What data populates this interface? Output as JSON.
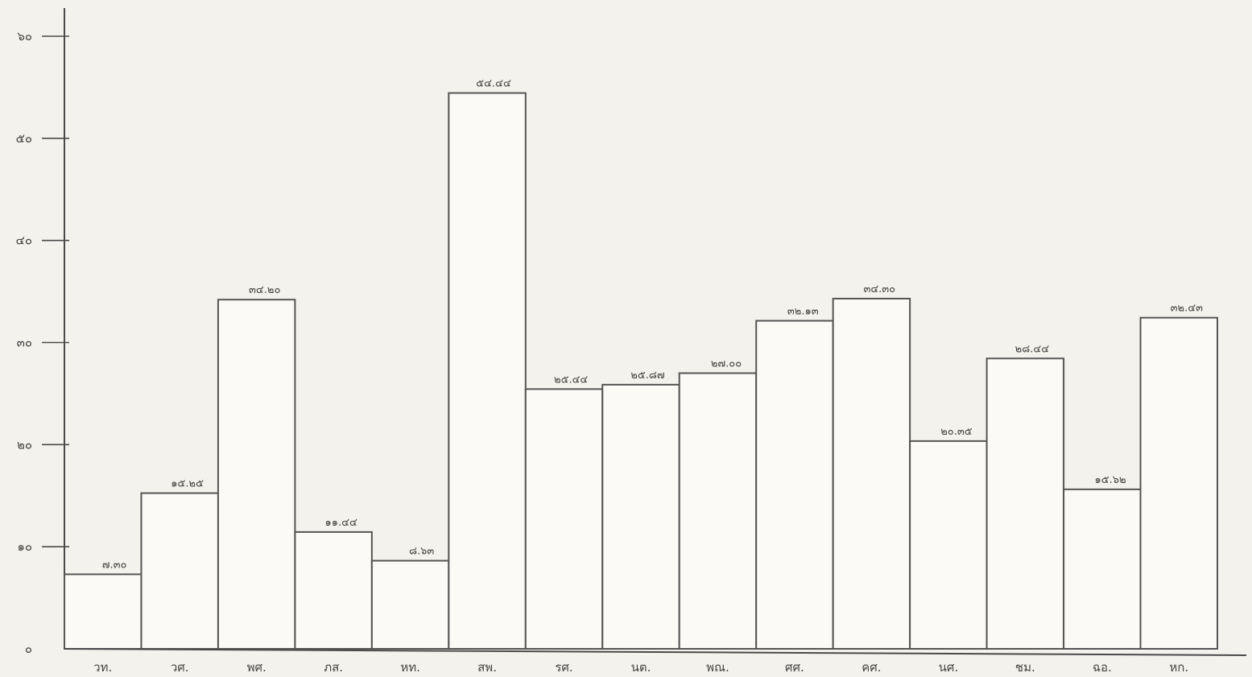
{
  "colors": {
    "background": "#f4f2ec",
    "bar_fill": "#fbfaf6",
    "bar_stroke": "#555555",
    "text": "#444444"
  },
  "chart_data": {
    "type": "bar",
    "title": "",
    "xlabel": "",
    "ylabel": "",
    "ylim": [
      0,
      60
    ],
    "y_ticks": [
      0,
      10,
      20,
      30,
      40,
      50,
      60
    ],
    "y_tick_labels": [
      "๐",
      "๑๐",
      "๒๐",
      "๓๐",
      "๔๐",
      "๕๐",
      "๖๐"
    ],
    "grid": false,
    "legend": "none",
    "categories": [
      "วท.",
      "วศ.",
      "พศ.",
      "ภส.",
      "หท.",
      "สพ.",
      "รศ.",
      "นต.",
      "พณ.",
      "ศศ.",
      "คศ.",
      "นศ.",
      "ชม.",
      "ฉอ.",
      "หก."
    ],
    "values": [
      7.3,
      15.25,
      34.2,
      11.44,
      8.63,
      54.44,
      25.44,
      25.87,
      27.0,
      32.13,
      34.3,
      20.35,
      28.44,
      15.62,
      32.43
    ],
    "data_labels": [
      "๗.๓๐",
      "๑๕.๒๕",
      "๓๔.๒๐",
      "๑๑.๔๔",
      "๘.๖๓",
      "๕๔.๔๔",
      "๒๕.๔๔",
      "๒๕.๘๗",
      "๒๗.๐๐",
      "๓๒.๑๓",
      "๓๔.๓๐",
      "๒๐.๓๕",
      "๒๘.๔๔",
      "๑๕.๖๒",
      "๓๒.๔๓"
    ]
  }
}
